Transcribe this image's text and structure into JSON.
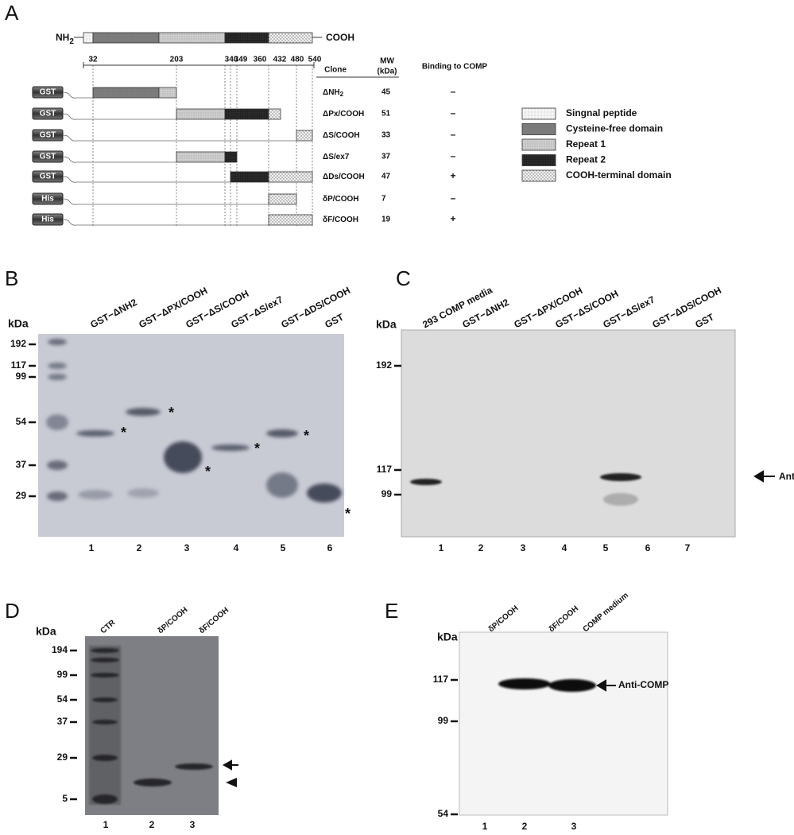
{
  "panel_a": {
    "label": "A",
    "protein": {
      "nh": "NH",
      "nh_sub": "2",
      "cooh": "COOH"
    },
    "positions": [
      "32",
      "203",
      "340",
      "349",
      "360",
      "432",
      "480",
      "540"
    ],
    "columns": {
      "clone": "Clone",
      "mw": "MW",
      "mw_unit": "(kDa)",
      "binding": "Binding to COMP"
    },
    "rows": [
      {
        "tag": "GST",
        "clone": "ΔNH",
        "clone_sub": "2",
        "mw": "45",
        "binding": "–"
      },
      {
        "tag": "GST",
        "clone": "ΔPx/COOH",
        "mw": "51",
        "binding": "–"
      },
      {
        "tag": "GST",
        "clone": "ΔS/COOH",
        "mw": "33",
        "binding": "–"
      },
      {
        "tag": "GST",
        "clone": "ΔS/ex7",
        "mw": "37",
        "binding": "–"
      },
      {
        "tag": "GST",
        "clone": "ΔDs/COOH",
        "mw": "47",
        "binding": "+"
      },
      {
        "tag": "His",
        "clone": "δP/COOH",
        "mw": "7",
        "binding": "–"
      },
      {
        "tag": "His",
        "clone": "δF/COOH",
        "mw": "19",
        "binding": "+"
      }
    ],
    "legend": [
      "Singnal peptide",
      "Cysteine-free domain",
      "Repeat 1",
      "Repeat 2",
      "COOH-terminal domain"
    ]
  },
  "panel_b": {
    "label": "B",
    "unit": "kDa",
    "markers": [
      "192",
      "117",
      "99",
      "54",
      "37",
      "29"
    ],
    "lanes": [
      "GST−ΔNH2",
      "GST−ΔPX/COOH",
      "GST−ΔS/COOH",
      "GST−ΔS/ex7",
      "GST−ΔDS/COOH",
      "GST"
    ],
    "lane_numbers": [
      "1",
      "2",
      "3",
      "4",
      "5",
      "6"
    ],
    "asterisk": "*"
  },
  "panel_c": {
    "label": "C",
    "unit": "kDa",
    "markers": [
      "192",
      "117",
      "99"
    ],
    "lanes": [
      "293 COMP media",
      "GST−ΔNH2",
      "GST−ΔPX/COOH",
      "GST−ΔS/COOH",
      "GST−ΔS/ex7",
      "GST−ΔDS/COOH",
      "GST"
    ],
    "lane_numbers": [
      "1",
      "2",
      "3",
      "4",
      "5",
      "6",
      "7"
    ],
    "annotation": "Anti-COMP"
  },
  "panel_d": {
    "label": "D",
    "unit": "kDa",
    "markers": [
      "194",
      "99",
      "54",
      "37",
      "29",
      "5"
    ],
    "lanes": [
      "CTR",
      "δP/COOH",
      "δF/COOH"
    ],
    "lane_numbers": [
      "1",
      "2",
      "3"
    ]
  },
  "panel_e": {
    "label": "E",
    "unit": "kDa",
    "markers": [
      "117",
      "99",
      "54"
    ],
    "lanes": [
      "δP/COOH",
      "δF/COOH",
      "COMP medium"
    ],
    "lane_numbers": [
      "1",
      "2",
      "3"
    ],
    "annotation": "Anti-COMP"
  }
}
